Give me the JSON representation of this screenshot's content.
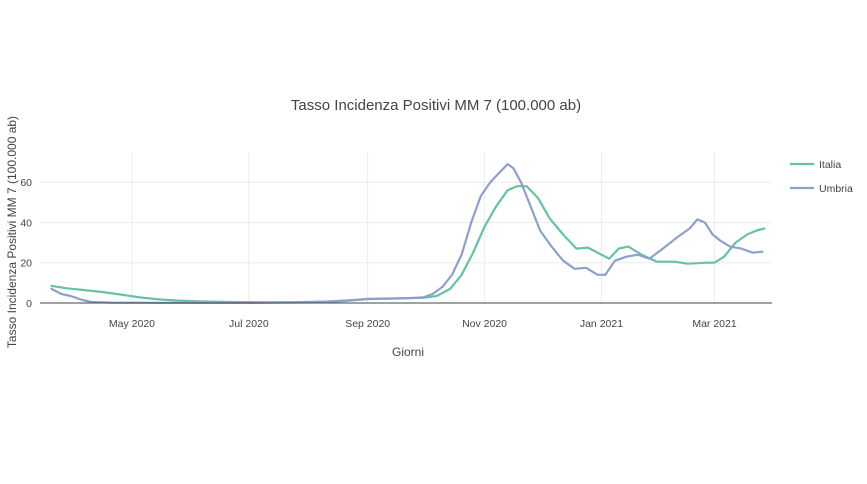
{
  "chart_data": {
    "type": "line",
    "title": "Tasso Incidenza Positivi MM 7 (100.000 ab)",
    "xlabel": "Giorni",
    "ylabel": "Tasso Incidenza Positivi MM 7 (100.000 ab)",
    "x_range": [
      "2020-03-14",
      "2021-03-31"
    ],
    "ylim": [
      0,
      75
    ],
    "y_ticks": [
      0,
      20,
      40,
      60
    ],
    "x_ticks": [
      {
        "date": "2020-05-01",
        "label": "May 2020"
      },
      {
        "date": "2020-07-01",
        "label": "Jul 2020"
      },
      {
        "date": "2020-09-01",
        "label": "Sep 2020"
      },
      {
        "date": "2020-11-01",
        "label": "Nov 2020"
      },
      {
        "date": "2021-01-01",
        "label": "Jan 2021"
      },
      {
        "date": "2021-03-01",
        "label": "Mar 2021"
      }
    ],
    "grid": true,
    "legend_position": "top-right",
    "series": [
      {
        "name": "Italia",
        "color": "#66c2a5",
        "points": [
          [
            "2020-03-20",
            8.5
          ],
          [
            "2020-03-28",
            7.3
          ],
          [
            "2020-04-05",
            6.5
          ],
          [
            "2020-04-15",
            5.5
          ],
          [
            "2020-04-25",
            4.2
          ],
          [
            "2020-05-05",
            2.8
          ],
          [
            "2020-05-15",
            1.8
          ],
          [
            "2020-05-25",
            1.2
          ],
          [
            "2020-06-05",
            0.8
          ],
          [
            "2020-06-20",
            0.5
          ],
          [
            "2020-07-10",
            0.3
          ],
          [
            "2020-07-25",
            0.4
          ],
          [
            "2020-08-10",
            0.7
          ],
          [
            "2020-08-25",
            1.5
          ],
          [
            "2020-09-01",
            2.0
          ],
          [
            "2020-09-15",
            2.3
          ],
          [
            "2020-09-30",
            2.6
          ],
          [
            "2020-10-07",
            3.5
          ],
          [
            "2020-10-14",
            7.0
          ],
          [
            "2020-10-20",
            14.0
          ],
          [
            "2020-10-26",
            25.0
          ],
          [
            "2020-11-01",
            38.0
          ],
          [
            "2020-11-07",
            48.0
          ],
          [
            "2020-11-13",
            56.0
          ],
          [
            "2020-11-18",
            58.0
          ],
          [
            "2020-11-23",
            58.0
          ],
          [
            "2020-11-29",
            52.0
          ],
          [
            "2020-12-05",
            42.0
          ],
          [
            "2020-12-12",
            34.0
          ],
          [
            "2020-12-19",
            27.0
          ],
          [
            "2020-12-25",
            27.5
          ],
          [
            "2021-01-01",
            24.0
          ],
          [
            "2021-01-05",
            22.0
          ],
          [
            "2021-01-10",
            27.0
          ],
          [
            "2021-01-15",
            28.0
          ],
          [
            "2021-01-22",
            24.0
          ],
          [
            "2021-01-30",
            20.5
          ],
          [
            "2021-02-08",
            20.5
          ],
          [
            "2021-02-15",
            19.5
          ],
          [
            "2021-02-25",
            20.0
          ],
          [
            "2021-03-01",
            20.0
          ],
          [
            "2021-03-06",
            23.0
          ],
          [
            "2021-03-12",
            30.0
          ],
          [
            "2021-03-18",
            34.0
          ],
          [
            "2021-03-23",
            36.0
          ],
          [
            "2021-03-27",
            37.0
          ]
        ]
      },
      {
        "name": "Umbria",
        "color": "#8da0cb",
        "points": [
          [
            "2020-03-20",
            7.0
          ],
          [
            "2020-03-25",
            4.5
          ],
          [
            "2020-03-30",
            3.5
          ],
          [
            "2020-04-05",
            1.5
          ],
          [
            "2020-04-10",
            0.5
          ],
          [
            "2020-04-20",
            0.2
          ],
          [
            "2020-05-15",
            0.1
          ],
          [
            "2020-07-01",
            0.1
          ],
          [
            "2020-08-01",
            0.3
          ],
          [
            "2020-08-20",
            1.0
          ],
          [
            "2020-09-01",
            2.0
          ],
          [
            "2020-09-20",
            2.3
          ],
          [
            "2020-09-30",
            2.8
          ],
          [
            "2020-10-05",
            4.5
          ],
          [
            "2020-10-10",
            8.0
          ],
          [
            "2020-10-15",
            14.0
          ],
          [
            "2020-10-20",
            24.0
          ],
          [
            "2020-10-25",
            40.0
          ],
          [
            "2020-10-30",
            53.0
          ],
          [
            "2020-11-04",
            60.0
          ],
          [
            "2020-11-09",
            65.0
          ],
          [
            "2020-11-13",
            69.0
          ],
          [
            "2020-11-16",
            67.0
          ],
          [
            "2020-11-20",
            60.0
          ],
          [
            "2020-11-25",
            48.0
          ],
          [
            "2020-11-30",
            36.0
          ],
          [
            "2020-12-06",
            28.0
          ],
          [
            "2020-12-12",
            21.0
          ],
          [
            "2020-12-18",
            17.0
          ],
          [
            "2020-12-24",
            17.5
          ],
          [
            "2020-12-30",
            14.0
          ],
          [
            "2021-01-03",
            14.0
          ],
          [
            "2021-01-08",
            21.0
          ],
          [
            "2021-01-14",
            23.0
          ],
          [
            "2021-01-20",
            24.0
          ],
          [
            "2021-01-26",
            22.0
          ],
          [
            "2021-02-02",
            27.0
          ],
          [
            "2021-02-10",
            33.0
          ],
          [
            "2021-02-16",
            37.0
          ],
          [
            "2021-02-20",
            41.5
          ],
          [
            "2021-02-24",
            40.0
          ],
          [
            "2021-02-28",
            34.0
          ],
          [
            "2021-03-04",
            31.0
          ],
          [
            "2021-03-09",
            28.0
          ],
          [
            "2021-03-15",
            27.0
          ],
          [
            "2021-03-21",
            25.0
          ],
          [
            "2021-03-26",
            25.5
          ]
        ]
      }
    ]
  }
}
